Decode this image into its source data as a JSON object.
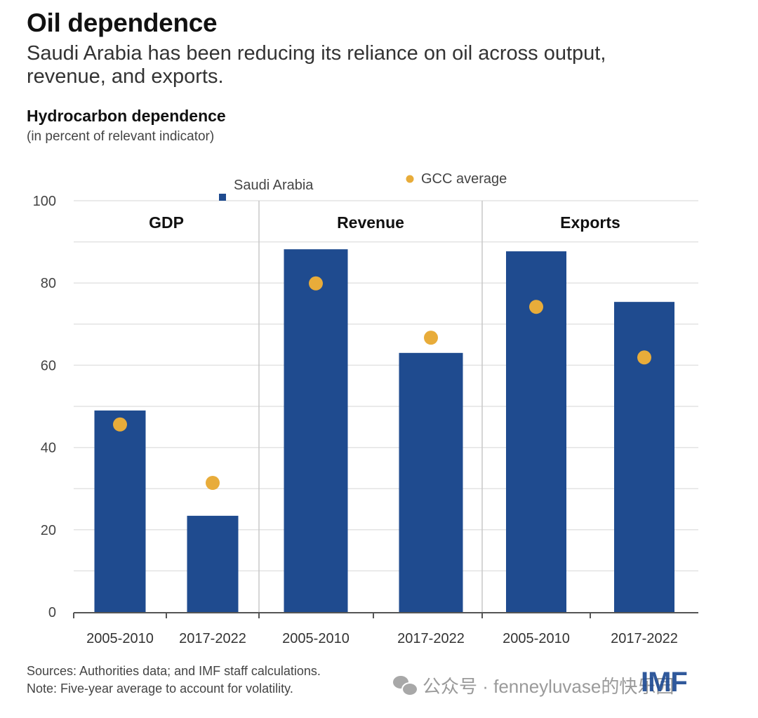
{
  "header": {
    "title": "Oil dependence",
    "subtitle": "Saudi Arabia has been reducing its reliance on oil across output, revenue, and exports."
  },
  "chart_data": {
    "type": "bar",
    "title": "Hydrocarbon dependence",
    "unit_label": "(in percent of relevant indicator)",
    "xlabel": "",
    "ylabel": "",
    "ylim": [
      0,
      100
    ],
    "yticks": [
      0,
      20,
      40,
      60,
      80,
      100
    ],
    "grid": true,
    "grid_step": 10,
    "legend": {
      "placement": "top-center",
      "entries": [
        {
          "name": "Saudi Arabia",
          "marker": "square",
          "color": "#1f4b8f"
        },
        {
          "name": "GCC average",
          "marker": "dot",
          "color": "#e8ac3a"
        }
      ]
    },
    "panels": [
      {
        "label": "GDP",
        "categories": [
          "2005-2010",
          "2017-2022"
        ]
      },
      {
        "label": "Revenue",
        "categories": [
          "2005-2010",
          "2017-2022"
        ]
      },
      {
        "label": "Exports",
        "categories": [
          "2005-2010",
          "2017-2022"
        ]
      }
    ],
    "series": [
      {
        "name": "Saudi Arabia",
        "type": "bar",
        "color": "#1f4b8f",
        "values": [
          [
            49.0,
            23.4
          ],
          [
            88.2,
            63.0
          ],
          [
            87.7,
            75.4
          ]
        ]
      },
      {
        "name": "GCC average",
        "type": "scatter",
        "color": "#e8ac3a",
        "values": [
          [
            45.6,
            31.4
          ],
          [
            79.9,
            66.7
          ],
          [
            74.2,
            61.9
          ]
        ]
      }
    ]
  },
  "footer": {
    "sources": "Sources: Authorities data; and IMF staff calculations.",
    "note": "Note: Five-year average to account for volatility.",
    "logo": "IMF",
    "watermark": "公众号 · fenneyluvase的快乐园"
  }
}
